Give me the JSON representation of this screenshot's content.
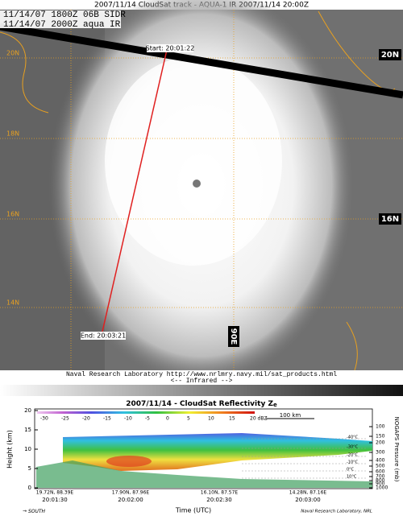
{
  "satellite_image": {
    "title": "2007/11/14 CloudSat track - AQUA-1 IR  2007/11/14 20:00Z",
    "overlay_lines": [
      "11/14/07 1800Z  06B SIDR",
      "11/14/07 2000Z  aqua IR"
    ],
    "left_latitude_labels": [
      "20N",
      "18N",
      "16N",
      "14N"
    ],
    "right_latitude_labels": [
      "20N",
      "16N"
    ],
    "longitude_label": "90E",
    "track_start": "Start: 20:01:22",
    "track_end": "End: 20:03:21",
    "credit": "Naval Research Laboratory  http://www.nrlmry.navy.mil/sat_products.html",
    "band_label": "<--  Infrared  -->"
  },
  "reflectivity_panel": {
    "title": "2007/11/14 - CloudSat Reflectivity Z",
    "title_subscript": "e",
    "colorbar_labels": [
      "-30",
      "-25",
      "-20",
      "-15",
      "-10",
      "-5",
      "0",
      "5",
      "10",
      "15",
      "20 dBZ"
    ],
    "scale_label": "100 km",
    "y_label": "Height (km)",
    "y_ticks": [
      "0",
      "5",
      "10",
      "15",
      "20"
    ],
    "y2_label": "NOGAPS Pressure (mb)",
    "y2_ticks": [
      "100",
      "150",
      "200",
      "300",
      "400",
      "500",
      "600",
      "700",
      "800",
      "900",
      "1000"
    ],
    "temperature_labels": [
      "-40°C",
      "-30°C",
      "-20°C",
      "-10°C",
      "0°C",
      "10°C"
    ],
    "positions": [
      "19.72N, 88.39E",
      "17.90N, 87.96E",
      "16.10N, 87.57E",
      "14.28N, 87.16E"
    ],
    "times": [
      "20:01:30",
      "20:02:00",
      "20:02:30",
      "20:03:00"
    ],
    "x_label": "Time (UTC)",
    "direction": "SOUTH",
    "credit": "Naval Research Laboratory, NRL"
  }
}
